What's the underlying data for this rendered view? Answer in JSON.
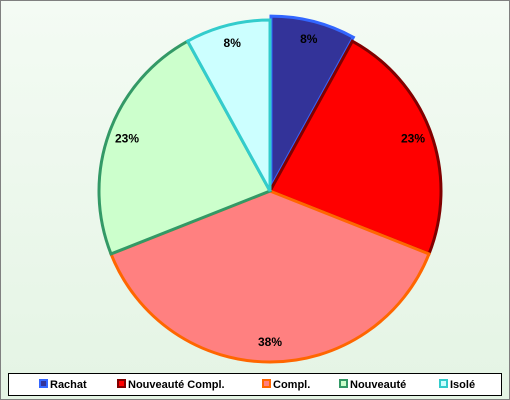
{
  "chart_data": {
    "type": "pie",
    "categories": [
      "Rachat",
      "Nouveauté Compl.",
      "Compl.",
      "Nouveauté",
      "Isolé"
    ],
    "values": [
      8,
      23,
      38,
      23,
      8
    ],
    "value_labels": [
      "8%",
      "23%",
      "38%",
      "23%",
      "8%"
    ],
    "colors": [
      "#333399",
      "#ff0000",
      "#ff8080",
      "#ccffcc",
      "#ccffff"
    ],
    "edge_colors": [
      "#3366ff",
      "#800000",
      "#ff6600",
      "#339966",
      "#33cccc"
    ],
    "legend": "bottom"
  }
}
